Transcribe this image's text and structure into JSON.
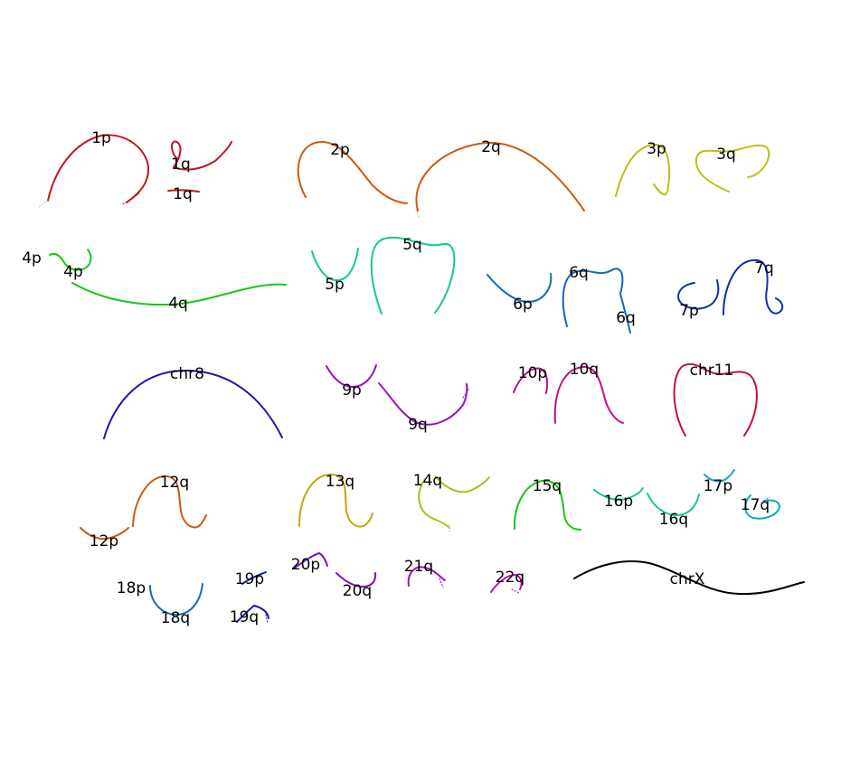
{
  "colors": {
    "chr1": "#c8121e",
    "chr2": "#cd5a0e",
    "chr3": "#bcbf16",
    "chr4": "#17c717",
    "chr5": "#16c88c",
    "chr6": "#1468bf",
    "chr7": "#0f2fb0",
    "chr8": "#2410b5",
    "chr9": "#9d10c0",
    "chr10": "#c60f86",
    "chr11": "#c4103a",
    "chr12": "#cd5a0e",
    "chr13": "#c9a010",
    "chr14": "#a6c316",
    "chr15": "#17c717",
    "chr16": "#16c88c",
    "chr17": "#10a8bf",
    "chr18": "#1468bf",
    "chr19": "#0f1cb0",
    "chr20": "#7a10c0",
    "chr21": "#9d10c0",
    "chr22": "#c60fb0",
    "chrX": "#000000",
    "unplaced": "#bbbbbb"
  },
  "labels": {
    "1p": "1p",
    "1q_a": "1q",
    "1q_b": "1q",
    "2p": "2p",
    "2q": "2q",
    "3p": "3p",
    "3q": "3q",
    "4p_a": "4p",
    "4p_b": "4p",
    "4q": "4q",
    "5p": "5p",
    "5q": "5q",
    "6p": "6p",
    "6q_a": "6q",
    "6q_b": "6q",
    "7p": "7p",
    "7q": "7q",
    "chr8": "chr8",
    "9p": "9p",
    "9q": "9q",
    "10p": "10p",
    "10q": "10q",
    "chr11": "chr11",
    "12p": "12p",
    "12q": "12q",
    "13q": "13q",
    "14q": "14q",
    "15q": "15q",
    "16p": "16p",
    "16q": "16q",
    "17p": "17p",
    "17q": "17q",
    "18p": "18p",
    "18q": "18q",
    "19p": "19p",
    "19q": "19q",
    "20p": "20p",
    "20q": "20q",
    "21q": "21q",
    "22q": "22q",
    "chrX": "chrX"
  }
}
